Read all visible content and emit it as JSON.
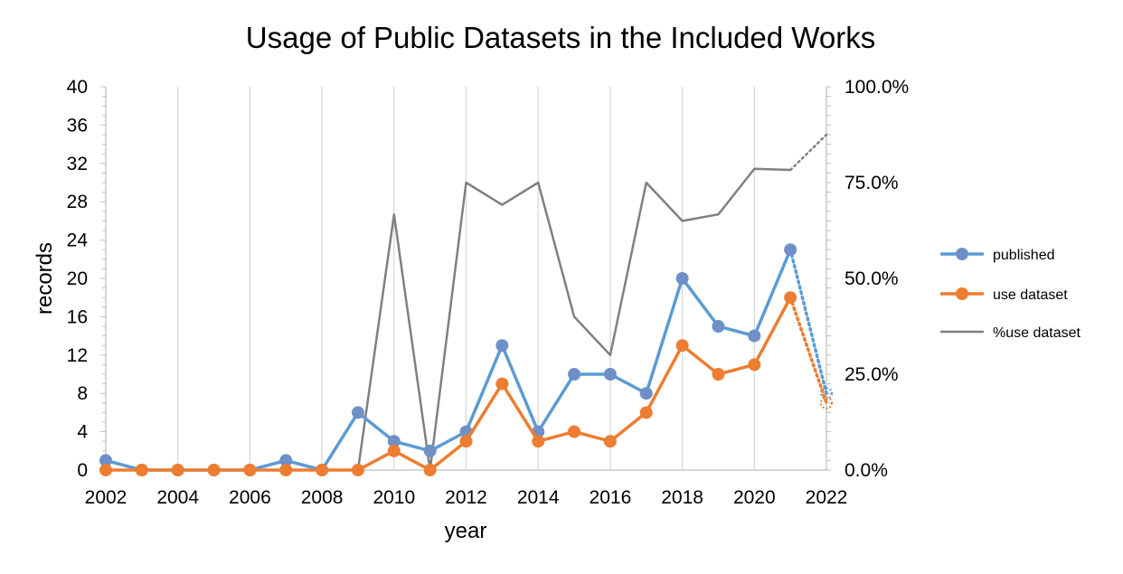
{
  "chart_data": {
    "type": "line",
    "title": "Usage of Public Datasets in the Included Works",
    "xlabel": "year",
    "ylabel": "records",
    "x": [
      2002,
      2003,
      2004,
      2005,
      2006,
      2007,
      2008,
      2009,
      2010,
      2011,
      2012,
      2013,
      2014,
      2015,
      2016,
      2017,
      2018,
      2019,
      2020,
      2021
    ],
    "xlim": [
      2002,
      2022
    ],
    "x_ticks": [
      "2002",
      "2004",
      "2006",
      "2008",
      "2010",
      "2012",
      "2014",
      "2016",
      "2018",
      "2020",
      "2022"
    ],
    "ylim": [
      0,
      40
    ],
    "y_ticks": [
      "0",
      "4",
      "8",
      "12",
      "16",
      "20",
      "24",
      "28",
      "32",
      "36",
      "40"
    ],
    "y2lim": [
      0,
      100
    ],
    "y2_ticks": [
      "0.0%",
      "25.0%",
      "50.0%",
      "75.0%",
      "100.0%"
    ],
    "grid": "vertical",
    "legend_position": "right",
    "series": [
      {
        "name": "published",
        "axis": "left",
        "color": "#5B9BD5",
        "marker_color": "#6F8FC7",
        "values": [
          1,
          0,
          0,
          0,
          0,
          1,
          0,
          6,
          3,
          2,
          4,
          13,
          4,
          10,
          10,
          8,
          20,
          15,
          14,
          23
        ],
        "forecast": {
          "x": [
            2021,
            2022
          ],
          "values": [
            23,
            8
          ]
        }
      },
      {
        "name": "use dataset",
        "axis": "left",
        "color": "#ED7D31",
        "marker_color": "#ED7D31",
        "values": [
          0,
          0,
          0,
          0,
          0,
          0,
          0,
          0,
          2,
          0,
          3,
          9,
          3,
          4,
          3,
          6,
          13,
          10,
          11,
          18
        ],
        "forecast": {
          "x": [
            2021,
            2022
          ],
          "values": [
            18,
            7
          ]
        }
      },
      {
        "name": "%use dataset",
        "axis": "right",
        "color": "#808080",
        "values": [
          0,
          0,
          0,
          0,
          0,
          0,
          0,
          0,
          66.7,
          0,
          75,
          69.2,
          75,
          40,
          30,
          75,
          65,
          66.7,
          78.6,
          78.3
        ],
        "forecast": {
          "x": [
            2021,
            2022
          ],
          "values": [
            78.3,
            87.5
          ]
        }
      }
    ]
  }
}
